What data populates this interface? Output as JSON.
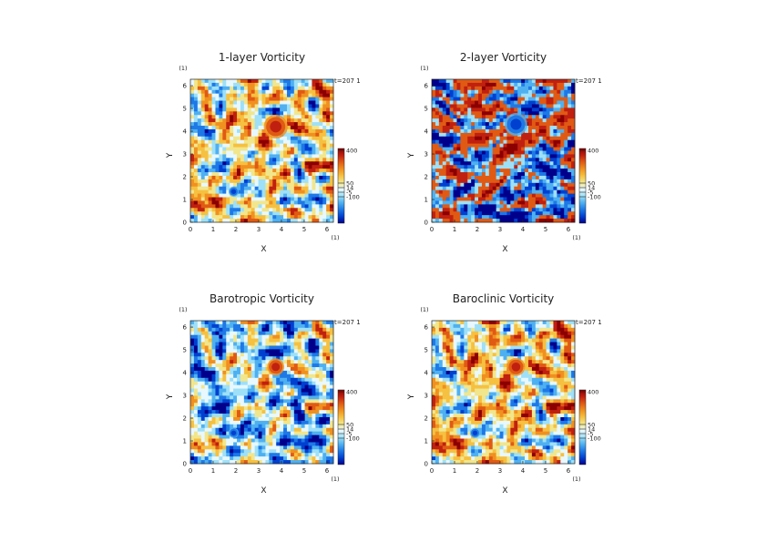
{
  "chart_data": [
    {
      "type": "heatmap",
      "title": "1-layer Vorticity",
      "xlabel": "X",
      "ylabel": "Y",
      "x_unit": "(1)",
      "y_unit": "(1)",
      "xlim": [
        0,
        6.283
      ],
      "ylim": [
        0,
        6.283
      ],
      "x_ticks": [
        "0",
        "1",
        "2",
        "3",
        "4",
        "5",
        "6"
      ],
      "y_ticks": [
        "0",
        "1",
        "2",
        "3",
        "4",
        "5",
        "6"
      ],
      "time_label": "t=207 1",
      "colorbar": {
        "labels": [
          "400",
          "50",
          "14",
          "-5",
          "-100"
        ],
        "values": [
          400,
          50,
          14,
          -5,
          -100
        ]
      },
      "features": [
        {
          "kind": "vortex",
          "sign": "positive",
          "x": 3.75,
          "y": 4.2,
          "r": 0.42
        },
        {
          "kind": "vortex",
          "sign": "negative",
          "x": 1.9,
          "y": 1.35,
          "r": 0.18
        }
      ]
    },
    {
      "type": "heatmap",
      "title": "2-layer Vorticity",
      "xlabel": "X",
      "ylabel": "Y",
      "x_unit": "(1)",
      "y_unit": "(1)",
      "xlim": [
        0,
        6.283
      ],
      "ylim": [
        0,
        6.283
      ],
      "x_ticks": [
        "0",
        "1",
        "2",
        "3",
        "4",
        "5",
        "6"
      ],
      "y_ticks": [
        "0",
        "1",
        "2",
        "3",
        "4",
        "5",
        "6"
      ],
      "time_label": "t=207 1",
      "colorbar": {
        "labels": [
          "400",
          "50",
          "14",
          "-5",
          "-100"
        ],
        "values": [
          400,
          50,
          14,
          -5,
          -100
        ]
      },
      "features": [
        {
          "kind": "vortex",
          "sign": "negative",
          "x": 3.7,
          "y": 4.3,
          "r": 0.4
        }
      ]
    },
    {
      "type": "heatmap",
      "title": "Barotropic Vorticity",
      "xlabel": "X",
      "ylabel": "Y",
      "x_unit": "(1)",
      "y_unit": "(1)",
      "xlim": [
        0,
        6.283
      ],
      "ylim": [
        0,
        6.283
      ],
      "x_ticks": [
        "0",
        "1",
        "2",
        "3",
        "4",
        "5",
        "6"
      ],
      "y_ticks": [
        "0",
        "1",
        "2",
        "3",
        "4",
        "5",
        "6"
      ],
      "time_label": "t=207 1",
      "colorbar": {
        "labels": [
          "400",
          "50",
          "14",
          "-5",
          "-100"
        ],
        "values": [
          400,
          50,
          14,
          -5,
          -100
        ]
      },
      "features": [
        {
          "kind": "vortex",
          "sign": "positive",
          "x": 3.75,
          "y": 4.25,
          "r": 0.3
        },
        {
          "kind": "vortex",
          "sign": "negative",
          "x": 1.9,
          "y": 1.35,
          "r": 0.18
        }
      ]
    },
    {
      "type": "heatmap",
      "title": "Baroclinic Vorticity",
      "xlabel": "X",
      "ylabel": "Y",
      "x_unit": "(1)",
      "y_unit": "(1)",
      "xlim": [
        0,
        6.283
      ],
      "ylim": [
        0,
        6.283
      ],
      "x_ticks": [
        "0",
        "1",
        "2",
        "3",
        "4",
        "5",
        "6"
      ],
      "y_ticks": [
        "0",
        "1",
        "2",
        "3",
        "4",
        "5",
        "6"
      ],
      "time_label": "t=207 1",
      "colorbar": {
        "labels": [
          "400",
          "50",
          "14",
          "-5",
          "-100"
        ],
        "values": [
          400,
          50,
          14,
          -5,
          -100
        ]
      },
      "features": [
        {
          "kind": "vortex",
          "sign": "positive",
          "x": 3.7,
          "y": 4.25,
          "r": 0.32
        },
        {
          "kind": "vortex",
          "sign": "negative",
          "x": 1.9,
          "y": 1.35,
          "r": 0.18
        }
      ]
    }
  ],
  "colormap": [
    "#00008b",
    "#0040d0",
    "#1e78e6",
    "#4fb0f0",
    "#9ee0f8",
    "#e8f8ff",
    "#f2e68c",
    "#f6c040",
    "#f09020",
    "#e05a14",
    "#c02010",
    "#8b0000"
  ]
}
